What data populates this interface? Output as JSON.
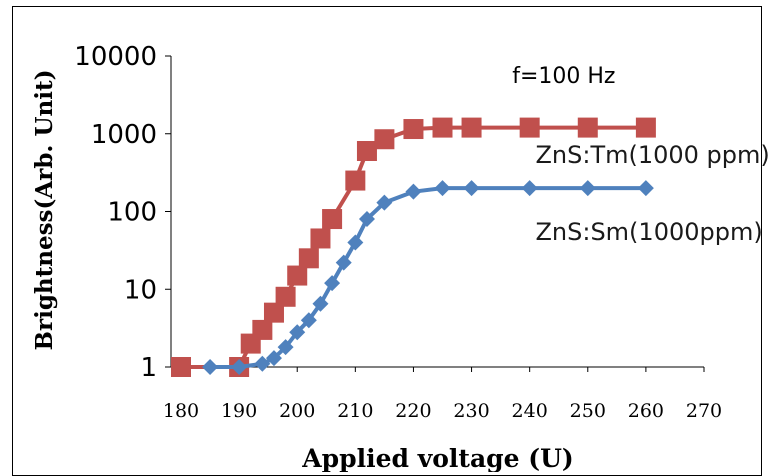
{
  "chart_data": {
    "type": "line",
    "title": "",
    "xlabel": "Applied voltage (U)",
    "ylabel": "Brightness(Arb. Unit)",
    "xlim": [
      180,
      270
    ],
    "ylim": [
      1,
      10000
    ],
    "yscale": "log",
    "xticks": [
      180,
      190,
      200,
      210,
      220,
      230,
      240,
      250,
      260,
      270
    ],
    "yticks": [
      {
        "value": 1,
        "label": "1"
      },
      {
        "value": 10,
        "label": "10"
      },
      {
        "value": 100,
        "label": "100"
      },
      {
        "value": 1000,
        "label": "1000"
      },
      {
        "value": 10000,
        "label": "10000"
      }
    ],
    "grid": false,
    "annotations": [
      {
        "text": "f=100 Hz",
        "x": 237,
        "y": 4500
      },
      {
        "text": "ZnS:Tm(1000 ppm)",
        "x": 241,
        "y": 420
      },
      {
        "text": "ZnS:Sm(1000ppm)",
        "x": 241,
        "y": 43
      }
    ],
    "series": [
      {
        "name": "ZnS:Tm(1000 ppm)",
        "color": "#c0504d",
        "marker": "square",
        "x": [
          180,
          190,
          192,
          194,
          196,
          198,
          200,
          202,
          204,
          206,
          210,
          212,
          215,
          220,
          225,
          230,
          240,
          250,
          260
        ],
        "y": [
          1,
          1,
          2,
          3,
          5,
          8,
          15,
          25,
          45,
          80,
          250,
          600,
          850,
          1150,
          1200,
          1200,
          1200,
          1200,
          1200
        ]
      },
      {
        "name": "ZnS:Sm(1000ppm)",
        "color": "#4f81bd",
        "marker": "diamond",
        "x": [
          185,
          190,
          194,
          196,
          198,
          200,
          202,
          204,
          206,
          208,
          210,
          212,
          215,
          220,
          225,
          230,
          240,
          250,
          260
        ],
        "y": [
          1,
          1,
          1.1,
          1.3,
          1.8,
          2.8,
          4,
          6.5,
          12,
          22,
          40,
          80,
          130,
          180,
          200,
          200,
          200,
          200,
          200
        ]
      }
    ]
  }
}
